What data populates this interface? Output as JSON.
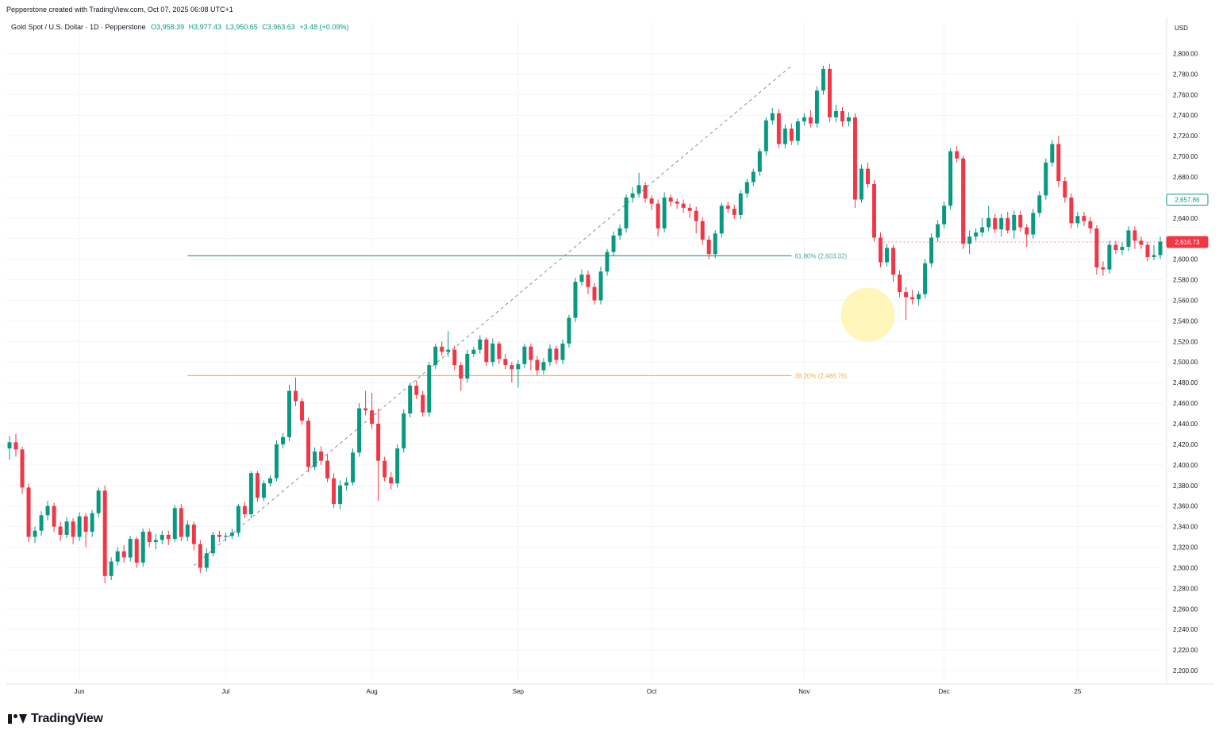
{
  "header": {
    "created_text": "Pepperstone created with TradingView.com, Oct 07, 2025 06:08 UTC+1",
    "symbol_text": "Gold Spot / U.S. Dollar · 1D · Pepperstone",
    "ohlc": [
      "O3,958.39",
      "H3,977.43",
      "L3,950.65",
      "C3,963.63",
      "+3.48 (+0.09%)"
    ]
  },
  "brand": {
    "name": "TradingView"
  },
  "colors": {
    "up": "#089981",
    "down": "#f23645",
    "fib_618": "#4aa7a0",
    "fib_382": "#f5b041",
    "highlight": "#fff3a6"
  },
  "chart_data": {
    "type": "candlestick",
    "currency": "USD",
    "ylim": [
      2190,
      2815
    ],
    "y_ticks": [
      "2,800.00",
      "2,780.00",
      "2,760.00",
      "2,740.00",
      "2,720.00",
      "2,700.00",
      "2,680.00",
      "2,660.00",
      "2,640.00",
      "2,620.00",
      "2,600.00",
      "2,580.00",
      "2,560.00",
      "2,540.00",
      "2,520.00",
      "2,500.00",
      "2,480.00",
      "2,460.00",
      "2,440.00",
      "2,420.00",
      "2,400.00",
      "2,380.00",
      "2,360.00",
      "2,340.00",
      "2,320.00",
      "2,300.00",
      "2,280.00",
      "2,260.00",
      "2,240.00",
      "2,220.00",
      "2,200.00"
    ],
    "y_tick_values": [
      2800,
      2780,
      2760,
      2740,
      2720,
      2700,
      2680,
      2660,
      2640,
      2620,
      2600,
      2580,
      2560,
      2540,
      2520,
      2500,
      2480,
      2460,
      2440,
      2420,
      2400,
      2380,
      2360,
      2340,
      2320,
      2300,
      2280,
      2260,
      2240,
      2220,
      2200
    ],
    "x_labels": [
      {
        "label": "Jun",
        "index": 11
      },
      {
        "label": "Jul",
        "index": 34
      },
      {
        "label": "Aug",
        "index": 57
      },
      {
        "label": "Sep",
        "index": 80
      },
      {
        "label": "Oct",
        "index": 101
      },
      {
        "label": "Nov",
        "index": 125
      },
      {
        "label": "Dec",
        "index": 147
      },
      {
        "label": "25",
        "index": 168
      }
    ],
    "price_labels": [
      {
        "text": "2,657.86",
        "value": 2657.86,
        "style": "outline"
      },
      {
        "text": "2,616.73",
        "value": 2616.73,
        "style": "filled"
      }
    ],
    "fib_levels": [
      {
        "label": "61.80% (2,603.32)",
        "value": 2603.32,
        "start_index": 28,
        "end_index": 124
      },
      {
        "label": "38.20% (2,486.76)",
        "value": 2486.76,
        "start_index": 28,
        "end_index": 124
      }
    ],
    "trendline": {
      "from_index": 29,
      "from_value": 2302,
      "to_index": 123,
      "to_value": 2788
    },
    "highlight": {
      "index": 135,
      "value": 2546
    },
    "candles": [
      [
        2416,
        2422,
        2405,
        2428
      ],
      [
        2422,
        2415,
        2408,
        2430
      ],
      [
        2415,
        2378,
        2372,
        2418
      ],
      [
        2378,
        2330,
        2325,
        2382
      ],
      [
        2330,
        2336,
        2324,
        2340
      ],
      [
        2336,
        2351,
        2331,
        2355
      ],
      [
        2351,
        2360,
        2346,
        2365
      ],
      [
        2360,
        2340,
        2335,
        2363
      ],
      [
        2340,
        2332,
        2326,
        2345
      ],
      [
        2332,
        2345,
        2329,
        2349
      ],
      [
        2345,
        2330,
        2323,
        2348
      ],
      [
        2330,
        2350,
        2326,
        2354
      ],
      [
        2350,
        2335,
        2320,
        2353
      ],
      [
        2335,
        2353,
        2330,
        2356
      ],
      [
        2353,
        2375,
        2349,
        2378
      ],
      [
        2375,
        2292,
        2285,
        2380
      ],
      [
        2292,
        2306,
        2288,
        2310
      ],
      [
        2306,
        2316,
        2302,
        2320
      ],
      [
        2316,
        2310,
        2305,
        2322
      ],
      [
        2310,
        2328,
        2306,
        2331
      ],
      [
        2328,
        2305,
        2300,
        2330
      ],
      [
        2305,
        2335,
        2301,
        2338
      ],
      [
        2335,
        2325,
        2320,
        2338
      ],
      [
        2325,
        2327,
        2318,
        2333
      ],
      [
        2327,
        2332,
        2323,
        2336
      ],
      [
        2332,
        2328,
        2322,
        2336
      ],
      [
        2328,
        2358,
        2325,
        2361
      ],
      [
        2358,
        2330,
        2326,
        2362
      ],
      [
        2330,
        2342,
        2326,
        2346
      ],
      [
        2342,
        2323,
        2317,
        2345
      ],
      [
        2323,
        2300,
        2295,
        2327
      ],
      [
        2300,
        2314,
        2296,
        2319
      ],
      [
        2314,
        2332,
        2311,
        2335
      ],
      [
        2332,
        2330,
        2325,
        2336
      ],
      [
        2330,
        2331,
        2326,
        2334
      ],
      [
        2331,
        2334,
        2328,
        2338
      ],
      [
        2334,
        2360,
        2330,
        2362
      ],
      [
        2360,
        2352,
        2348,
        2364
      ],
      [
        2352,
        2392,
        2348,
        2394
      ],
      [
        2392,
        2368,
        2364,
        2394
      ],
      [
        2368,
        2382,
        2365,
        2385
      ],
      [
        2382,
        2387,
        2379,
        2390
      ],
      [
        2387,
        2420,
        2384,
        2424
      ],
      [
        2420,
        2427,
        2416,
        2431
      ],
      [
        2427,
        2472,
        2423,
        2478
      ],
      [
        2472,
        2462,
        2457,
        2485
      ],
      [
        2462,
        2443,
        2439,
        2465
      ],
      [
        2443,
        2398,
        2393,
        2446
      ],
      [
        2398,
        2413,
        2395,
        2417
      ],
      [
        2413,
        2404,
        2400,
        2418
      ],
      [
        2404,
        2387,
        2383,
        2410
      ],
      [
        2387,
        2362,
        2358,
        2392
      ],
      [
        2362,
        2380,
        2357,
        2385
      ],
      [
        2380,
        2383,
        2375,
        2388
      ],
      [
        2383,
        2412,
        2380,
        2416
      ],
      [
        2412,
        2455,
        2408,
        2460
      ],
      [
        2455,
        2453,
        2448,
        2472
      ],
      [
        2453,
        2440,
        2435,
        2470
      ],
      [
        2440,
        2404,
        2365,
        2455
      ],
      [
        2404,
        2388,
        2384,
        2408
      ],
      [
        2388,
        2382,
        2376,
        2393
      ],
      [
        2382,
        2416,
        2378,
        2420
      ],
      [
        2416,
        2450,
        2412,
        2454
      ],
      [
        2450,
        2477,
        2446,
        2480
      ],
      [
        2477,
        2468,
        2464,
        2482
      ],
      [
        2468,
        2451,
        2447,
        2472
      ],
      [
        2451,
        2497,
        2447,
        2500
      ],
      [
        2497,
        2515,
        2493,
        2518
      ],
      [
        2515,
        2510,
        2506,
        2520
      ],
      [
        2510,
        2512,
        2505,
        2530
      ],
      [
        2512,
        2497,
        2492,
        2516
      ],
      [
        2497,
        2484,
        2472,
        2500
      ],
      [
        2484,
        2508,
        2480,
        2512
      ],
      [
        2508,
        2512,
        2505,
        2515
      ],
      [
        2512,
        2522,
        2508,
        2526
      ],
      [
        2522,
        2500,
        2496,
        2524
      ],
      [
        2500,
        2518,
        2496,
        2523
      ],
      [
        2518,
        2503,
        2498,
        2520
      ],
      [
        2503,
        2497,
        2493,
        2508
      ],
      [
        2497,
        2493,
        2480,
        2500
      ],
      [
        2493,
        2498,
        2475,
        2502
      ],
      [
        2498,
        2515,
        2494,
        2518
      ],
      [
        2515,
        2502,
        2492,
        2518
      ],
      [
        2502,
        2492,
        2487,
        2506
      ],
      [
        2492,
        2500,
        2488,
        2504
      ],
      [
        2500,
        2513,
        2496,
        2517
      ],
      [
        2513,
        2502,
        2498,
        2516
      ],
      [
        2502,
        2518,
        2498,
        2522
      ],
      [
        2518,
        2543,
        2514,
        2546
      ],
      [
        2543,
        2578,
        2539,
        2582
      ],
      [
        2578,
        2585,
        2574,
        2590
      ],
      [
        2585,
        2573,
        2566,
        2589
      ],
      [
        2573,
        2560,
        2556,
        2577
      ],
      [
        2560,
        2588,
        2556,
        2593
      ],
      [
        2588,
        2607,
        2584,
        2610
      ],
      [
        2607,
        2623,
        2603,
        2627
      ],
      [
        2623,
        2630,
        2619,
        2634
      ],
      [
        2630,
        2660,
        2626,
        2663
      ],
      [
        2660,
        2664,
        2655,
        2670
      ],
      [
        2664,
        2672,
        2660,
        2684
      ],
      [
        2672,
        2659,
        2655,
        2675
      ],
      [
        2659,
        2654,
        2648,
        2662
      ],
      [
        2654,
        2630,
        2622,
        2658
      ],
      [
        2630,
        2660,
        2626,
        2665
      ],
      [
        2660,
        2656,
        2651,
        2663
      ],
      [
        2656,
        2654,
        2649,
        2659
      ],
      [
        2654,
        2650,
        2645,
        2658
      ],
      [
        2650,
        2647,
        2640,
        2654
      ],
      [
        2647,
        2637,
        2625,
        2651
      ],
      [
        2637,
        2619,
        2614,
        2641
      ],
      [
        2619,
        2605,
        2600,
        2623
      ],
      [
        2605,
        2625,
        2601,
        2628
      ],
      [
        2625,
        2652,
        2621,
        2655
      ],
      [
        2652,
        2649,
        2645,
        2656
      ],
      [
        2649,
        2643,
        2639,
        2653
      ],
      [
        2643,
        2664,
        2639,
        2667
      ],
      [
        2664,
        2675,
        2660,
        2678
      ],
      [
        2675,
        2685,
        2671,
        2688
      ],
      [
        2685,
        2705,
        2681,
        2708
      ],
      [
        2705,
        2735,
        2701,
        2738
      ],
      [
        2735,
        2742,
        2731,
        2747
      ],
      [
        2742,
        2712,
        2708,
        2746
      ],
      [
        2712,
        2727,
        2708,
        2731
      ],
      [
        2727,
        2715,
        2711,
        2732
      ],
      [
        2715,
        2734,
        2711,
        2737
      ],
      [
        2734,
        2738,
        2730,
        2742
      ],
      [
        2738,
        2732,
        2728,
        2745
      ],
      [
        2732,
        2764,
        2728,
        2768
      ],
      [
        2764,
        2785,
        2760,
        2788
      ],
      [
        2785,
        2738,
        2733,
        2790
      ],
      [
        2738,
        2744,
        2733,
        2750
      ],
      [
        2744,
        2734,
        2729,
        2748
      ],
      [
        2734,
        2738,
        2729,
        2743
      ],
      [
        2738,
        2658,
        2650,
        2742
      ],
      [
        2658,
        2688,
        2655,
        2692
      ],
      [
        2688,
        2673,
        2669,
        2694
      ],
      [
        2673,
        2621,
        2617,
        2677
      ],
      [
        2621,
        2597,
        2592,
        2626
      ],
      [
        2597,
        2611,
        2593,
        2615
      ],
      [
        2611,
        2585,
        2578,
        2614
      ],
      [
        2585,
        2568,
        2563,
        2589
      ],
      [
        2568,
        2563,
        2541,
        2573
      ],
      [
        2563,
        2561,
        2556,
        2570
      ],
      [
        2561,
        2566,
        2555,
        2569
      ],
      [
        2566,
        2596,
        2562,
        2600
      ],
      [
        2596,
        2621,
        2592,
        2625
      ],
      [
        2621,
        2634,
        2617,
        2638
      ],
      [
        2634,
        2652,
        2630,
        2656
      ],
      [
        2652,
        2705,
        2648,
        2708
      ],
      [
        2705,
        2698,
        2694,
        2710
      ],
      [
        2698,
        2615,
        2610,
        2701
      ],
      [
        2615,
        2622,
        2605,
        2628
      ],
      [
        2622,
        2626,
        2618,
        2630
      ],
      [
        2626,
        2631,
        2622,
        2640
      ],
      [
        2631,
        2640,
        2627,
        2652
      ],
      [
        2640,
        2629,
        2625,
        2644
      ],
      [
        2629,
        2640,
        2622,
        2644
      ],
      [
        2640,
        2628,
        2625,
        2646
      ],
      [
        2628,
        2643,
        2620,
        2647
      ],
      [
        2643,
        2631,
        2627,
        2647
      ],
      [
        2631,
        2624,
        2612,
        2634
      ],
      [
        2624,
        2645,
        2620,
        2649
      ],
      [
        2645,
        2662,
        2641,
        2666
      ],
      [
        2662,
        2694,
        2658,
        2698
      ],
      [
        2694,
        2712,
        2690,
        2716
      ],
      [
        2712,
        2676,
        2670,
        2720
      ],
      [
        2676,
        2660,
        2655,
        2680
      ],
      [
        2660,
        2635,
        2630,
        2664
      ],
      [
        2635,
        2642,
        2631,
        2646
      ],
      [
        2642,
        2637,
        2632,
        2646
      ],
      [
        2637,
        2630,
        2625,
        2641
      ],
      [
        2630,
        2592,
        2585,
        2633
      ],
      [
        2592,
        2590,
        2584,
        2598
      ],
      [
        2590,
        2614,
        2586,
        2618
      ],
      [
        2614,
        2609,
        2605,
        2618
      ],
      [
        2609,
        2612,
        2604,
        2616
      ],
      [
        2612,
        2628,
        2608,
        2632
      ],
      [
        2628,
        2618,
        2610,
        2632
      ],
      [
        2618,
        2614,
        2610,
        2622
      ],
      [
        2614,
        2602,
        2598,
        2617
      ],
      [
        2602,
        2604,
        2599,
        2614
      ],
      [
        2604,
        2617,
        2600,
        2622
      ]
    ]
  }
}
